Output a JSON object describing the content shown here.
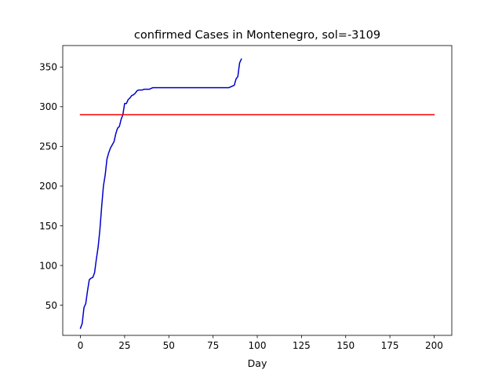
{
  "chart_data": {
    "type": "line",
    "title": "confirmed Cases in Montenegro, sol=-3109",
    "xlabel": "Day",
    "ylabel": "",
    "xlim": [
      -10,
      210
    ],
    "ylim": [
      12,
      377
    ],
    "xticks": [
      0,
      25,
      50,
      75,
      100,
      125,
      150,
      175,
      200
    ],
    "yticks": [
      50,
      100,
      150,
      200,
      250,
      300,
      350
    ],
    "grid": false,
    "legend": "none",
    "series": [
      {
        "color": "#0000cd",
        "x": [
          0,
          1,
          2,
          3,
          4,
          5,
          6,
          7,
          8,
          9,
          10,
          11,
          12,
          13,
          14,
          15,
          16,
          17,
          18,
          19,
          20,
          21,
          22,
          23,
          24,
          25,
          26,
          27,
          28,
          29,
          30,
          31,
          32,
          33,
          34,
          35,
          36,
          37,
          38,
          39,
          40,
          41,
          42,
          43,
          44,
          45,
          46,
          47,
          48,
          49,
          50,
          55,
          60,
          65,
          70,
          75,
          80,
          84,
          85,
          86,
          87,
          88,
          89,
          90,
          91
        ],
        "y": [
          21,
          27,
          47,
          52,
          68,
          82,
          84,
          85,
          91,
          108,
          123,
          145,
          174,
          200,
          214,
          234,
          242,
          248,
          252,
          256,
          266,
          273,
          275,
          284,
          290,
          304,
          304,
          309,
          311,
          314,
          315,
          317,
          320,
          321,
          321,
          321,
          322,
          322,
          322,
          322,
          323,
          324,
          324,
          324,
          324,
          324,
          324,
          324,
          324,
          324,
          324,
          324,
          324,
          324,
          324,
          324,
          324,
          324,
          325,
          326,
          327,
          335,
          338,
          355,
          360
        ]
      },
      {
        "color": "#ff0000",
        "x": [
          0,
          200
        ],
        "y": [
          290,
          290
        ]
      }
    ]
  }
}
